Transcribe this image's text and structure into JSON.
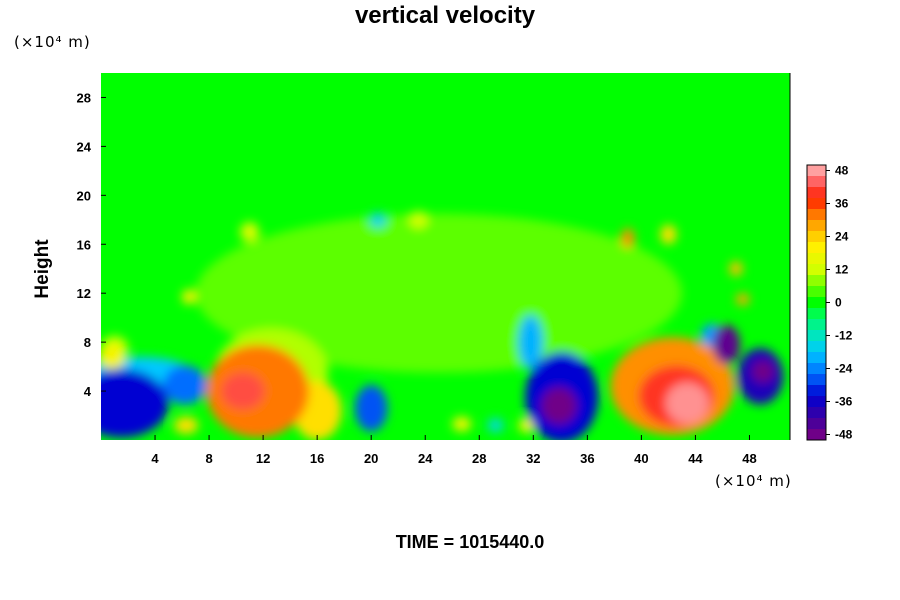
{
  "chart_data": {
    "type": "heatmap",
    "title": "vertical velocity",
    "xlabel": "",
    "ylabel": "Height",
    "x_unit": "(×10⁴ m)",
    "y_unit": "(×10⁴ m)",
    "xlim": [
      0,
      51
    ],
    "ylim": [
      0,
      30
    ],
    "x_ticks": [
      4,
      8,
      12,
      16,
      20,
      24,
      28,
      32,
      36,
      40,
      44,
      48
    ],
    "y_ticks": [
      4,
      8,
      12,
      16,
      20,
      24,
      28
    ],
    "colorbar": {
      "range": [
        -50,
        50
      ],
      "ticks": [
        48,
        36,
        24,
        12,
        0,
        -12,
        -24,
        -36,
        -48
      ]
    },
    "background_value": 0,
    "features": [
      {
        "x": 1.5,
        "y": 3.0,
        "rx": 3.5,
        "ry": 2.8,
        "value": -34
      },
      {
        "x": 6.2,
        "y": 4.5,
        "rx": 1.6,
        "ry": 1.6,
        "value": -26
      },
      {
        "x": 3.0,
        "y": 5.2,
        "rx": 4.0,
        "ry": 1.6,
        "value": -18
      },
      {
        "x": 0.8,
        "y": 6.8,
        "rx": 1.0,
        "ry": 1.0,
        "value": 18
      },
      {
        "x": 11.6,
        "y": 4.0,
        "rx": 3.8,
        "ry": 3.8,
        "value": 32
      },
      {
        "x": 10.5,
        "y": 4.0,
        "rx": 1.6,
        "ry": 1.5,
        "value": 42
      },
      {
        "x": 12.6,
        "y": 5.5,
        "rx": 4.2,
        "ry": 3.6,
        "value": 10
      },
      {
        "x": 16.0,
        "y": 2.4,
        "rx": 1.8,
        "ry": 2.4,
        "value": 22
      },
      {
        "x": 20.0,
        "y": 2.6,
        "rx": 1.2,
        "ry": 1.9,
        "value": -28
      },
      {
        "x": 6.3,
        "y": 1.2,
        "rx": 0.9,
        "ry": 0.7,
        "value": 22
      },
      {
        "x": 26.7,
        "y": 1.3,
        "rx": 0.7,
        "ry": 0.6,
        "value": 18
      },
      {
        "x": 29.2,
        "y": 1.2,
        "rx": 0.6,
        "ry": 0.6,
        "value": -14
      },
      {
        "x": 31.5,
        "y": 1.2,
        "rx": 0.6,
        "ry": 0.6,
        "value": 18
      },
      {
        "x": 34.1,
        "y": 3.5,
        "rx": 2.7,
        "ry": 3.7,
        "value": -34
      },
      {
        "x": 33.9,
        "y": 2.8,
        "rx": 1.3,
        "ry": 1.5,
        "value": -48
      },
      {
        "x": 31.8,
        "y": 8.0,
        "rx": 0.9,
        "ry": 2.2,
        "value": -20
      },
      {
        "x": 42.3,
        "y": 4.4,
        "rx": 4.6,
        "ry": 4.0,
        "value": 30
      },
      {
        "x": 42.6,
        "y": 3.6,
        "rx": 2.8,
        "ry": 2.5,
        "value": 40
      },
      {
        "x": 43.4,
        "y": 3.0,
        "rx": 1.6,
        "ry": 1.7,
        "value": 47
      },
      {
        "x": 46.3,
        "y": 7.8,
        "rx": 1.0,
        "ry": 1.6,
        "value": -46
      },
      {
        "x": 48.8,
        "y": 5.2,
        "rx": 1.7,
        "ry": 2.3,
        "value": -38
      },
      {
        "x": 49.0,
        "y": 5.6,
        "rx": 0.8,
        "ry": 0.9,
        "value": -48
      },
      {
        "x": 45.2,
        "y": 8.5,
        "rx": 0.8,
        "ry": 1.0,
        "value": -22
      },
      {
        "x": 39.0,
        "y": 16.5,
        "rx": 0.5,
        "ry": 0.8,
        "value": 30
      },
      {
        "x": 42.0,
        "y": 16.8,
        "rx": 0.6,
        "ry": 0.8,
        "value": 22
      },
      {
        "x": 47.0,
        "y": 14.0,
        "rx": 0.5,
        "ry": 0.6,
        "value": 26
      },
      {
        "x": 47.5,
        "y": 11.5,
        "rx": 0.5,
        "ry": 0.5,
        "value": 28
      },
      {
        "x": 11.0,
        "y": 17.0,
        "rx": 0.7,
        "ry": 0.8,
        "value": 14
      },
      {
        "x": 20.5,
        "y": 18.0,
        "rx": 0.6,
        "ry": 0.6,
        "value": -16
      },
      {
        "x": 23.5,
        "y": 18.0,
        "rx": 0.7,
        "ry": 0.7,
        "value": 12
      },
      {
        "x": 6.5,
        "y": 11.7,
        "rx": 0.5,
        "ry": 0.6,
        "value": 20
      },
      {
        "x": 1.0,
        "y": 7.5,
        "rx": 1.0,
        "ry": 1.0,
        "value": 12
      },
      {
        "x": 25.0,
        "y": 12.0,
        "rx": 18.0,
        "ry": 6.5,
        "value": 5
      }
    ]
  },
  "time_label": "TIME = 1015440.0"
}
